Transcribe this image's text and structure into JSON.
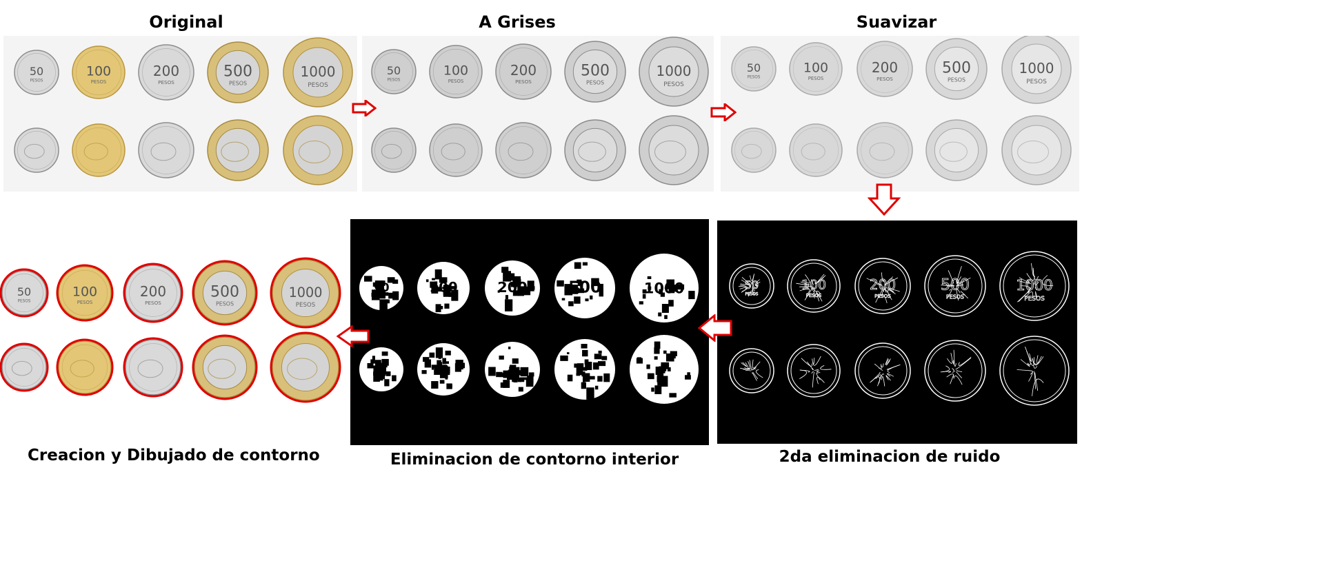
{
  "stages": {
    "original": {
      "title": "Original"
    },
    "grises": {
      "title": "A Grises"
    },
    "suavizar": {
      "title": "Suavizar"
    },
    "ruido": {
      "title": "2da eliminacion de ruido"
    },
    "interior": {
      "title": "Eliminacion de contorno interior"
    },
    "contorno": {
      "title": "Creacion y Dibujado de contorno"
    }
  },
  "coins": [
    {
      "value": "50",
      "unit": "PESOS",
      "metal": "silver"
    },
    {
      "value": "100",
      "unit": "PESOS",
      "metal": "gold"
    },
    {
      "value": "200",
      "unit": "PESOS",
      "metal": "silver"
    },
    {
      "value": "500",
      "unit": "PESOS",
      "metal": "bimetal"
    },
    {
      "value": "1000",
      "unit": "PESOS",
      "metal": "bimetal-gold"
    }
  ],
  "colors": {
    "silver": "#d9d9d9",
    "gold": "#e3c777",
    "bimetal_ring": "#d9c07a",
    "bimetal_center": "#d6d6d6",
    "gray": "#cfcfcf",
    "smooth": "#e0e0e0",
    "contour_red": "#e00000",
    "arrow_red": "#e00000"
  }
}
